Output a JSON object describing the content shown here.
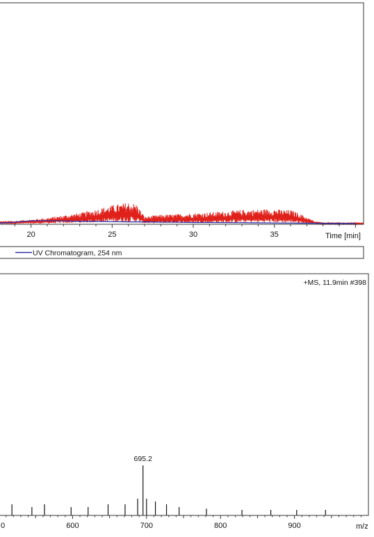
{
  "colors": {
    "ms_trace": "#e0211b",
    "uv_trace": "#2b2fa8",
    "ms_spectrum": "#111111",
    "frame": "#333333"
  },
  "chart_data": [
    {
      "type": "line",
      "title": "",
      "xlabel": "Time [min]",
      "ylabel": "",
      "xlim": [
        18,
        40.5
      ],
      "ylim": [
        0,
        100
      ],
      "x_ticks": [
        "20",
        "25",
        "30",
        "35"
      ],
      "grid": false,
      "legend": "below",
      "series": [
        {
          "name": "",
          "color": "#e0211b",
          "x": [
            18,
            19,
            20,
            21,
            22,
            23,
            24,
            25,
            25.5,
            26,
            26.5,
            27,
            28,
            29,
            30,
            31,
            32,
            33,
            34,
            35,
            35.5,
            36,
            36.5,
            37,
            37.5,
            38,
            39,
            40
          ],
          "y": [
            5,
            6,
            8,
            11,
            15,
            19,
            25,
            32,
            34,
            37,
            34,
            13,
            16,
            17,
            19,
            20,
            22,
            24,
            25,
            26,
            24,
            24,
            19,
            12,
            5,
            3,
            2,
            2
          ]
        },
        {
          "name": "UV Chromatogram, 254 nm",
          "color": "#2b2fa8",
          "x": [
            18,
            19,
            20,
            21,
            22,
            23,
            24,
            25,
            26,
            27,
            28,
            29,
            30,
            31,
            32,
            33,
            34,
            35,
            36,
            37,
            38,
            39,
            40
          ],
          "y": [
            2,
            3.5,
            6,
            6,
            5.5,
            5,
            5,
            4.5,
            4,
            4,
            3.5,
            3.5,
            3,
            3,
            2.8,
            2.6,
            2.4,
            2.2,
            2,
            1.8,
            1.6,
            1.4,
            1.2
          ]
        }
      ]
    },
    {
      "type": "bar",
      "title": "+MS, 11.9min #398",
      "xlabel": "m/z",
      "ylabel": "",
      "xlim": [
        500,
        1000
      ],
      "ylim": [
        0,
        100
      ],
      "x_ticks": [
        "0",
        "600",
        "700",
        "800",
        "900"
      ],
      "grid": false,
      "peaks": [
        {
          "mz": 518,
          "intensity": 2
        },
        {
          "mz": 545,
          "intensity": 1.5
        },
        {
          "mz": 562,
          "intensity": 2
        },
        {
          "mz": 598,
          "intensity": 1.5
        },
        {
          "mz": 621,
          "intensity": 1.5
        },
        {
          "mz": 648,
          "intensity": 2
        },
        {
          "mz": 671,
          "intensity": 2
        },
        {
          "mz": 688,
          "intensity": 3
        },
        {
          "mz": 695.2,
          "intensity": 9
        },
        {
          "mz": 700,
          "intensity": 3
        },
        {
          "mz": 712,
          "intensity": 2.5
        },
        {
          "mz": 727,
          "intensity": 2
        },
        {
          "mz": 744,
          "intensity": 1.5
        },
        {
          "mz": 781,
          "intensity": 1.2
        },
        {
          "mz": 829,
          "intensity": 1
        },
        {
          "mz": 868,
          "intensity": 1
        },
        {
          "mz": 903,
          "intensity": 1
        },
        {
          "mz": 942,
          "intensity": 1
        }
      ],
      "annotations": [
        {
          "mz": 695.2,
          "label": "695.2"
        }
      ]
    }
  ]
}
